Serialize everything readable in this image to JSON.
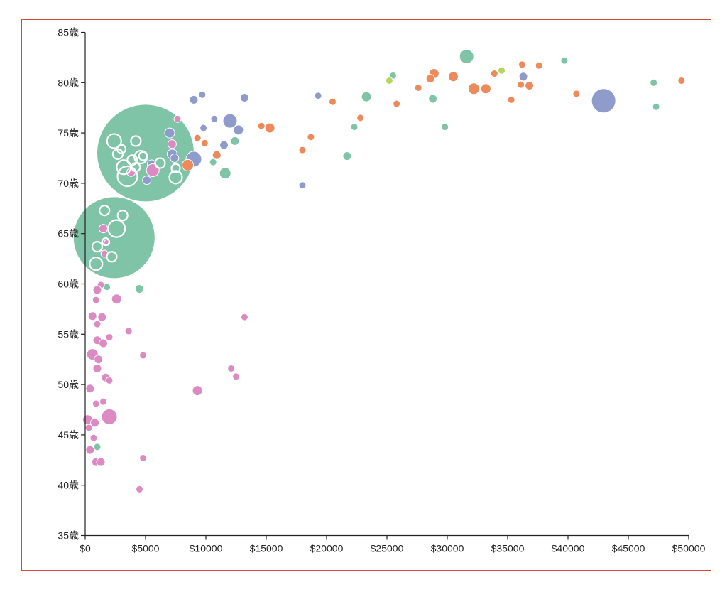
{
  "chart_data": {
    "type": "scatter",
    "title": "",
    "xlabel": "",
    "ylabel": "",
    "xlim": [
      0,
      50000
    ],
    "ylim": [
      35,
      85
    ],
    "x_ticks": [
      "$0",
      "$5000",
      "$10000",
      "$15000",
      "$20000",
      "$25000",
      "$30000",
      "$35000",
      "$40000",
      "$45000",
      "$50000"
    ],
    "y_ticks": [
      "35歳",
      "40歳",
      "45歳",
      "50歳",
      "55歳",
      "60歳",
      "65歳",
      "70歳",
      "75歳",
      "80歳",
      "85歳"
    ],
    "colors": {
      "green": "#7fc4a6",
      "orange": "#ec8a5b",
      "blue": "#8f9ccb",
      "pink": "#db8bc2",
      "lime": "#b7d55a",
      "white": "#ffffff"
    },
    "clusters": [
      {
        "x": 5000,
        "y": 73,
        "r": 68,
        "color": "green"
      },
      {
        "x": 2400,
        "y": 64.6,
        "r": 57,
        "color": "green"
      }
    ],
    "points": [
      {
        "x": 31600,
        "y": 82.6,
        "r": 10,
        "color": "green"
      },
      {
        "x": 39700,
        "y": 82.2,
        "r": 5,
        "color": "green"
      },
      {
        "x": 36200,
        "y": 81.8,
        "r": 5,
        "color": "orange"
      },
      {
        "x": 37600,
        "y": 81.7,
        "r": 5,
        "color": "orange"
      },
      {
        "x": 34500,
        "y": 81.2,
        "r": 5,
        "color": "lime"
      },
      {
        "x": 33900,
        "y": 80.9,
        "r": 5,
        "color": "orange"
      },
      {
        "x": 28900,
        "y": 80.9,
        "r": 7,
        "color": "orange"
      },
      {
        "x": 30500,
        "y": 80.6,
        "r": 7,
        "color": "orange"
      },
      {
        "x": 36300,
        "y": 80.6,
        "r": 6,
        "color": "blue"
      },
      {
        "x": 25500,
        "y": 80.7,
        "r": 5,
        "color": "green"
      },
      {
        "x": 28600,
        "y": 80.4,
        "r": 6,
        "color": "orange"
      },
      {
        "x": 25200,
        "y": 80.2,
        "r": 5,
        "color": "lime"
      },
      {
        "x": 49400,
        "y": 80.2,
        "r": 5,
        "color": "orange"
      },
      {
        "x": 47100,
        "y": 80.0,
        "r": 5,
        "color": "green"
      },
      {
        "x": 36100,
        "y": 79.8,
        "r": 5,
        "color": "orange"
      },
      {
        "x": 36800,
        "y": 79.7,
        "r": 6,
        "color": "orange"
      },
      {
        "x": 27600,
        "y": 79.5,
        "r": 5,
        "color": "orange"
      },
      {
        "x": 32200,
        "y": 79.4,
        "r": 8,
        "color": "orange"
      },
      {
        "x": 33200,
        "y": 79.4,
        "r": 7,
        "color": "orange"
      },
      {
        "x": 40700,
        "y": 78.9,
        "r": 5,
        "color": "orange"
      },
      {
        "x": 42950,
        "y": 78.2,
        "r": 17,
        "color": "blue"
      },
      {
        "x": 35300,
        "y": 78.3,
        "r": 5,
        "color": "orange"
      },
      {
        "x": 28800,
        "y": 78.4,
        "r": 6,
        "color": "green"
      },
      {
        "x": 23300,
        "y": 78.6,
        "r": 7,
        "color": "green"
      },
      {
        "x": 19300,
        "y": 78.7,
        "r": 5,
        "color": "blue"
      },
      {
        "x": 13200,
        "y": 78.5,
        "r": 6,
        "color": "blue"
      },
      {
        "x": 9700,
        "y": 78.8,
        "r": 5,
        "color": "blue"
      },
      {
        "x": 9000,
        "y": 78.3,
        "r": 6,
        "color": "blue"
      },
      {
        "x": 20500,
        "y": 78.1,
        "r": 5,
        "color": "orange"
      },
      {
        "x": 25800,
        "y": 77.9,
        "r": 5,
        "color": "orange"
      },
      {
        "x": 47300,
        "y": 77.6,
        "r": 5,
        "color": "green"
      },
      {
        "x": 22800,
        "y": 76.5,
        "r": 5,
        "color": "orange"
      },
      {
        "x": 10700,
        "y": 76.4,
        "r": 5,
        "color": "blue"
      },
      {
        "x": 12000,
        "y": 76.2,
        "r": 10,
        "color": "blue"
      },
      {
        "x": 29800,
        "y": 75.6,
        "r": 5,
        "color": "green"
      },
      {
        "x": 22300,
        "y": 75.6,
        "r": 5,
        "color": "green"
      },
      {
        "x": 15300,
        "y": 75.5,
        "r": 7,
        "color": "orange"
      },
      {
        "x": 14600,
        "y": 75.7,
        "r": 5,
        "color": "orange"
      },
      {
        "x": 9800,
        "y": 75.5,
        "r": 5,
        "color": "blue"
      },
      {
        "x": 12700,
        "y": 75.3,
        "r": 7,
        "color": "blue"
      },
      {
        "x": 18700,
        "y": 74.6,
        "r": 5,
        "color": "orange"
      },
      {
        "x": 9300,
        "y": 74.5,
        "r": 5,
        "color": "orange"
      },
      {
        "x": 12400,
        "y": 74.2,
        "r": 6,
        "color": "green"
      },
      {
        "x": 9900,
        "y": 74.0,
        "r": 5,
        "color": "orange"
      },
      {
        "x": 11500,
        "y": 73.8,
        "r": 6,
        "color": "blue"
      },
      {
        "x": 18000,
        "y": 73.3,
        "r": 5,
        "color": "orange"
      },
      {
        "x": 21700,
        "y": 72.7,
        "r": 6,
        "color": "green"
      },
      {
        "x": 10900,
        "y": 72.8,
        "r": 6,
        "color": "orange"
      },
      {
        "x": 10600,
        "y": 72.1,
        "r": 5,
        "color": "green"
      },
      {
        "x": 9000,
        "y": 72.4,
        "r": 11,
        "color": "blue"
      },
      {
        "x": 8500,
        "y": 71.8,
        "r": 8,
        "color": "orange"
      },
      {
        "x": 11600,
        "y": 71.0,
        "r": 8,
        "color": "green"
      },
      {
        "x": 18000,
        "y": 69.8,
        "r": 5,
        "color": "blue"
      },
      {
        "x": 7650,
        "y": 76.4,
        "r": 5,
        "color": "pink"
      },
      {
        "x": 1800,
        "y": 59.7,
        "r": 5,
        "color": "green"
      },
      {
        "x": 4500,
        "y": 59.5,
        "r": 6,
        "color": "green"
      },
      {
        "x": 1300,
        "y": 59.9,
        "r": 5,
        "color": "pink"
      },
      {
        "x": 1000,
        "y": 59.4,
        "r": 6,
        "color": "pink"
      },
      {
        "x": 2600,
        "y": 58.5,
        "r": 7,
        "color": "pink"
      },
      {
        "x": 900,
        "y": 58.4,
        "r": 5,
        "color": "pink"
      },
      {
        "x": 600,
        "y": 56.8,
        "r": 6,
        "color": "pink"
      },
      {
        "x": 1400,
        "y": 56.7,
        "r": 6,
        "color": "pink"
      },
      {
        "x": 13200,
        "y": 56.7,
        "r": 5,
        "color": "pink"
      },
      {
        "x": 1000,
        "y": 56.0,
        "r": 5,
        "color": "pink"
      },
      {
        "x": 3600,
        "y": 55.3,
        "r": 5,
        "color": "pink"
      },
      {
        "x": 2000,
        "y": 54.7,
        "r": 5,
        "color": "pink"
      },
      {
        "x": 1000,
        "y": 54.4,
        "r": 6,
        "color": "pink"
      },
      {
        "x": 1500,
        "y": 54.1,
        "r": 6,
        "color": "pink"
      },
      {
        "x": 600,
        "y": 53.0,
        "r": 8,
        "color": "pink"
      },
      {
        "x": 1100,
        "y": 52.5,
        "r": 6,
        "color": "pink"
      },
      {
        "x": 4800,
        "y": 52.9,
        "r": 5,
        "color": "pink"
      },
      {
        "x": 1000,
        "y": 51.6,
        "r": 6,
        "color": "pink"
      },
      {
        "x": 12100,
        "y": 51.6,
        "r": 5,
        "color": "pink"
      },
      {
        "x": 12500,
        "y": 50.8,
        "r": 5,
        "color": "pink"
      },
      {
        "x": 1700,
        "y": 50.7,
        "r": 6,
        "color": "pink"
      },
      {
        "x": 2000,
        "y": 50.4,
        "r": 5,
        "color": "pink"
      },
      {
        "x": 400,
        "y": 49.6,
        "r": 6,
        "color": "pink"
      },
      {
        "x": 9300,
        "y": 49.4,
        "r": 7,
        "color": "pink"
      },
      {
        "x": 1500,
        "y": 48.3,
        "r": 5,
        "color": "pink"
      },
      {
        "x": 900,
        "y": 48.1,
        "r": 5,
        "color": "pink"
      },
      {
        "x": 2000,
        "y": 46.8,
        "r": 11,
        "color": "pink"
      },
      {
        "x": 200,
        "y": 46.5,
        "r": 7,
        "color": "pink"
      },
      {
        "x": 800,
        "y": 46.2,
        "r": 6,
        "color": "pink"
      },
      {
        "x": 300,
        "y": 45.7,
        "r": 5,
        "color": "pink"
      },
      {
        "x": 700,
        "y": 44.7,
        "r": 5,
        "color": "pink"
      },
      {
        "x": 1000,
        "y": 43.8,
        "r": 5,
        "color": "green"
      },
      {
        "x": 400,
        "y": 43.5,
        "r": 6,
        "color": "pink"
      },
      {
        "x": 900,
        "y": 42.3,
        "r": 6,
        "color": "pink"
      },
      {
        "x": 1300,
        "y": 42.3,
        "r": 6,
        "color": "pink"
      },
      {
        "x": 4800,
        "y": 42.7,
        "r": 5,
        "color": "pink"
      },
      {
        "x": 4500,
        "y": 39.6,
        "r": 5,
        "color": "pink"
      },
      {
        "x": 7000,
        "y": 75.0,
        "r": 7,
        "color": "blue"
      },
      {
        "x": 7200,
        "y": 73.9,
        "r": 6,
        "color": "pink"
      },
      {
        "x": 7200,
        "y": 72.9,
        "r": 7,
        "color": "blue"
      },
      {
        "x": 7400,
        "y": 72.5,
        "r": 6,
        "color": "blue"
      },
      {
        "x": 5500,
        "y": 71.9,
        "r": 6,
        "color": "blue"
      },
      {
        "x": 5600,
        "y": 71.3,
        "r": 9,
        "color": "pink"
      },
      {
        "x": 3800,
        "y": 71.1,
        "r": 6,
        "color": "pink"
      },
      {
        "x": 5100,
        "y": 70.3,
        "r": 6,
        "color": "blue"
      },
      {
        "x": 1500,
        "y": 65.5,
        "r": 6,
        "color": "pink"
      },
      {
        "x": 1600,
        "y": 63.0,
        "r": 5,
        "color": "pink"
      },
      {
        "x": 1800,
        "y": 64.1,
        "r": 4,
        "color": "pink"
      },
      {
        "x": 4800,
        "y": 72.7,
        "r": 6,
        "color": "white"
      },
      {
        "x": 2400,
        "y": 74.2,
        "r": 10,
        "color": "white"
      },
      {
        "x": 4200,
        "y": 74.2,
        "r": 7,
        "color": "white"
      },
      {
        "x": 3000,
        "y": 73.4,
        "r": 6,
        "color": "white"
      },
      {
        "x": 2700,
        "y": 72.9,
        "r": 7,
        "color": "white"
      },
      {
        "x": 4600,
        "y": 72.6,
        "r": 9,
        "color": "white"
      },
      {
        "x": 3900,
        "y": 72.3,
        "r": 7,
        "color": "white"
      },
      {
        "x": 6200,
        "y": 72.0,
        "r": 7,
        "color": "white"
      },
      {
        "x": 3200,
        "y": 71.6,
        "r": 10,
        "color": "white"
      },
      {
        "x": 4200,
        "y": 71.6,
        "r": 6,
        "color": "white"
      },
      {
        "x": 7500,
        "y": 71.5,
        "r": 6,
        "color": "white"
      },
      {
        "x": 3500,
        "y": 70.7,
        "r": 14,
        "color": "white"
      },
      {
        "x": 7500,
        "y": 70.6,
        "r": 9,
        "color": "white"
      },
      {
        "x": 1600,
        "y": 67.3,
        "r": 7,
        "color": "white"
      },
      {
        "x": 3100,
        "y": 66.8,
        "r": 7,
        "color": "white"
      },
      {
        "x": 2600,
        "y": 65.5,
        "r": 12,
        "color": "white"
      },
      {
        "x": 1700,
        "y": 64.2,
        "r": 5,
        "color": "white"
      },
      {
        "x": 1000,
        "y": 63.7,
        "r": 7,
        "color": "white"
      },
      {
        "x": 2200,
        "y": 62.7,
        "r": 7,
        "color": "white"
      },
      {
        "x": 900,
        "y": 62.0,
        "r": 9,
        "color": "white"
      }
    ]
  }
}
